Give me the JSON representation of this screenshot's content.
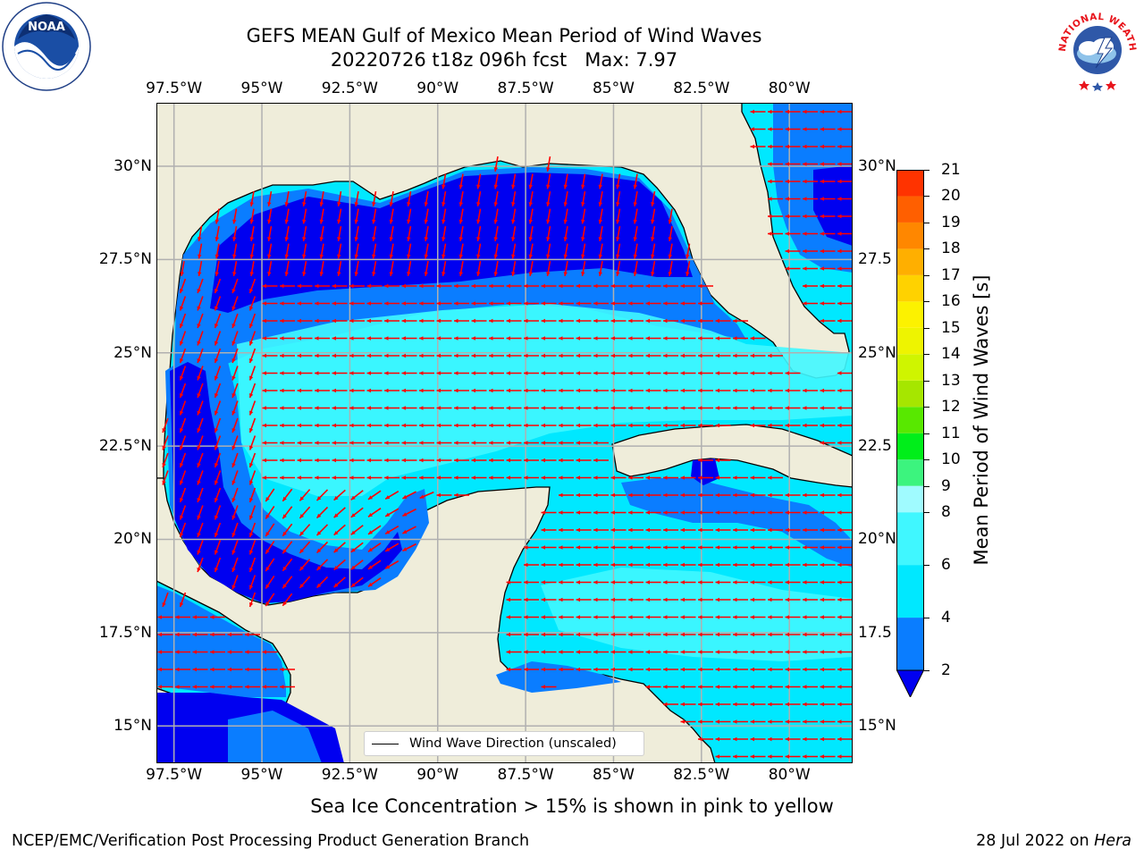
{
  "title_line1": "GEFS MEAN Gulf of Mexico Mean Period of Wind Waves",
  "title_line2": "20220726 t18z 096h fcst   Max: 7.97",
  "logos": {
    "left": {
      "name": "NOAA",
      "ring_text": "NATIONAL OCEANIC AND ATMOSPHERIC ADMINISTRATION · U.S. DEPARTMENT OF COMMERCE"
    },
    "right": {
      "name": "NATIONAL WEATHER SERVICE"
    }
  },
  "map": {
    "lon_ticks": [
      "97.5°W",
      "95°W",
      "92.5°W",
      "90°W",
      "87.5°W",
      "85°W",
      "82.5°W",
      "80°W"
    ],
    "lon_values": [
      -97.5,
      -95,
      -92.5,
      -90,
      -87.5,
      -85,
      -82.5,
      -80
    ],
    "lat_ticks": [
      "15°N",
      "17.5°N",
      "20°N",
      "22.5°N",
      "25°N",
      "27.5°N",
      "30°N"
    ],
    "lat_ticks_right": [
      "15°N",
      "17.5",
      "20°N",
      "22.5",
      "25°N",
      "27.5",
      "30°N"
    ],
    "lat_values": [
      15,
      17.5,
      20,
      22.5,
      25,
      27.5,
      30
    ],
    "extent": {
      "lon": [
        -98,
        -78.2
      ],
      "lat": [
        14,
        31.7
      ]
    },
    "land_color": "#efedda",
    "arrow_color": "#ff0000",
    "gridline_color": "#b0b0b0",
    "wind_direction": "westward in the central and southern Gulf, southward along the northern and western Gulf"
  },
  "legend_label": "Wind Wave Direction (unscaled)",
  "colorbar": {
    "label": "Mean Period of Wind Waves [s]",
    "ticks": [
      "2",
      "4",
      "6",
      "8",
      "9",
      "10",
      "11",
      "12",
      "13",
      "14",
      "15",
      "16",
      "17",
      "18",
      "19",
      "20",
      "21"
    ],
    "tick_values": [
      2,
      4,
      6,
      8,
      9,
      10,
      11,
      12,
      13,
      14,
      15,
      16,
      17,
      18,
      19,
      20,
      21
    ],
    "colors": [
      "#0a7dff",
      "#00e8ff",
      "#40f7ff",
      "#a0fbff",
      "#3cf47e",
      "#00ee1a",
      "#58e800",
      "#a6e600",
      "#cff500",
      "#eef400",
      "#fcf200",
      "#ffd200",
      "#ffaf00",
      "#ff8700",
      "#ff5f00",
      "#ff3300",
      "#ff0000"
    ],
    "under_color": "#0000f0",
    "range": [
      2,
      21
    ]
  },
  "sea_ice_note": "Sea Ice Concentration > 15% is shown in pink to yellow",
  "credit_left": "NCEP/EMC/Verification Post Processing Product Generation Branch",
  "credit_right_prefix": "28 Jul 2022 on ",
  "credit_right_machine": "Hera"
}
